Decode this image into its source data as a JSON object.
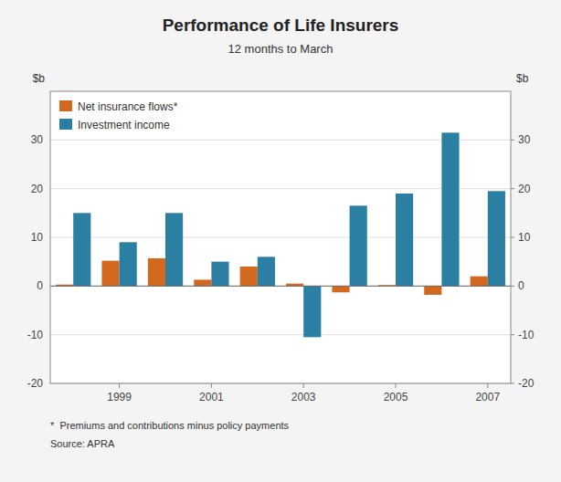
{
  "chart_data": {
    "type": "bar",
    "title": "Performance of Life Insurers",
    "subtitle": "12 months to March",
    "ylabel": "$b",
    "y2label": "$b",
    "footnote": "*  Premiums and contributions minus policy payments",
    "source": "Source: APRA",
    "categories": [
      null,
      "1999",
      null,
      "2001",
      null,
      "2003",
      null,
      "2005",
      null,
      "2007"
    ],
    "series": [
      {
        "name": "Net insurance flows*",
        "color": "#d2691e",
        "values": [
          0.3,
          5.2,
          5.7,
          1.3,
          4.0,
          0.5,
          -1.3,
          0.2,
          -1.8,
          2.0
        ]
      },
      {
        "name": "Investment income",
        "color": "#2b7fa3",
        "values": [
          15.0,
          9.0,
          15.0,
          5.0,
          6.0,
          -10.5,
          16.5,
          19.0,
          31.5,
          19.5
        ]
      }
    ],
    "ylim": [
      -20,
      40
    ],
    "yticks": [
      -20,
      -10,
      0,
      10,
      20,
      30
    ],
    "y2lim": [
      -20,
      40
    ],
    "y2ticks": [
      -20,
      -10,
      0,
      10,
      20,
      30
    ],
    "grid": true,
    "legend": "upper left"
  }
}
